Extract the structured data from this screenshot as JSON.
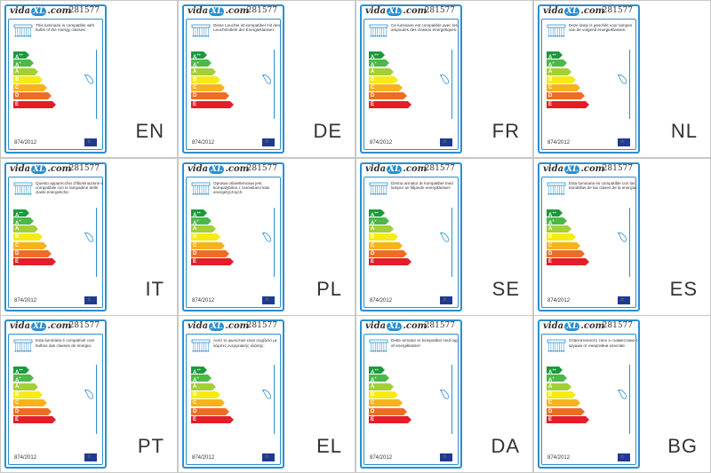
{
  "brand_prefix": "vida",
  "brand_mid": "XL",
  "brand_suffix": ".com",
  "product_code": "281577",
  "regulation": "874/2012",
  "classes": [
    "A++",
    "A+",
    "A",
    "B",
    "C",
    "D",
    "E"
  ],
  "class_colors": [
    "#1a9a3c",
    "#4cb848",
    "#a3cf38",
    "#f6eb14",
    "#f7b21c",
    "#ee6d23",
    "#e31e26"
  ],
  "labels": [
    {
      "lang": "EN",
      "text": "This luminaire is compatible with bulbs of the energy classes:"
    },
    {
      "lang": "DE",
      "text": "Diese Leuchte ist kompatibel mit den Leuchtmitteln der Energieklassen:"
    },
    {
      "lang": "FR",
      "text": "Ce luminaire est compatible avec les ampoules des classes énergétiques:"
    },
    {
      "lang": "NL",
      "text": "Deze lamp is geschikt voor lampen van de volgend energieklasses:"
    },
    {
      "lang": "IT",
      "text": "Questo apparecchio d'illuminazione è compatibile con le lampadine delle classi energetiche:"
    },
    {
      "lang": "PL",
      "text": "Oprawa oświetleniowa jest kompatybilna z żarówkami klas energetycznych:"
    },
    {
      "lang": "SE",
      "text": "Denna armatur är kompatibel med lampor av följande energiklasser:"
    },
    {
      "lang": "ES",
      "text": "Esta luminaria es compatible con las bombillas de las clases de la energía:"
    },
    {
      "lang": "PT",
      "text": "Esta luminária é compatível com bulbos das classes de energia:"
    },
    {
      "lang": "EL",
      "text": "Αυτό το φωτιστικό είναι συμβατό με λάμπες ενεργειακής κλάσης:"
    },
    {
      "lang": "DA",
      "text": "Dette armatur er kompatibel med lag af energiklasser:"
    },
    {
      "lang": "BG",
      "text": "Осветителното тяло е съвместимо с крушки от енергийни класове:"
    }
  ]
}
